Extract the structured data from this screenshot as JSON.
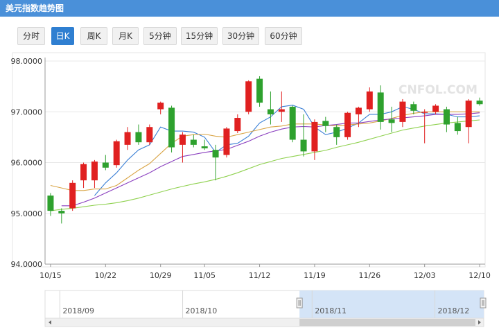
{
  "title": "美元指数趋势图",
  "tabs": [
    {
      "label": "分时",
      "active": false
    },
    {
      "label": "日K",
      "active": true
    },
    {
      "label": "周K",
      "active": false
    },
    {
      "label": "月K",
      "active": false
    },
    {
      "label": "5分钟",
      "active": false
    },
    {
      "label": "15分钟",
      "active": false
    },
    {
      "label": "30分钟",
      "active": false
    },
    {
      "label": "60分钟",
      "active": false
    }
  ],
  "watermark": "CNFOL.COM",
  "colors": {
    "up": "#e02020",
    "down": "#2ea12e",
    "ma5": "#3a7fd5",
    "ma10": "#d9a547",
    "ma20": "#8a3fbf",
    "ma30": "#8fd14f",
    "header": "#4a90d9",
    "active_tab": "#2f7fd1"
  },
  "chart_data": {
    "type": "candlestick",
    "ylim": [
      94.0,
      98.0
    ],
    "yticks": [
      "98.0000",
      "97.0000",
      "96.0000",
      "95.0000",
      "94.0000"
    ],
    "xticks": [
      {
        "label": "10/15",
        "index": 0
      },
      {
        "label": "10/22",
        "index": 5
      },
      {
        "label": "10/29",
        "index": 10
      },
      {
        "label": "11/05",
        "index": 14
      },
      {
        "label": "11/12",
        "index": 19
      },
      {
        "label": "11/19",
        "index": 24
      },
      {
        "label": "11/26",
        "index": 29
      },
      {
        "label": "12/03",
        "index": 34
      },
      {
        "label": "12/10",
        "index": 39
      }
    ],
    "candles": [
      {
        "o": 95.35,
        "h": 95.4,
        "l": 94.95,
        "c": 95.05
      },
      {
        "o": 95.05,
        "h": 95.1,
        "l": 94.8,
        "c": 95.0
      },
      {
        "o": 95.1,
        "h": 95.65,
        "l": 95.05,
        "c": 95.6
      },
      {
        "o": 95.65,
        "h": 96.0,
        "l": 95.5,
        "c": 95.97
      },
      {
        "o": 95.65,
        "h": 96.05,
        "l": 95.5,
        "c": 96.02
      },
      {
        "o": 96.0,
        "h": 96.15,
        "l": 95.85,
        "c": 95.9
      },
      {
        "o": 95.95,
        "h": 96.45,
        "l": 95.9,
        "c": 96.42
      },
      {
        "o": 96.35,
        "h": 96.7,
        "l": 96.25,
        "c": 96.6
      },
      {
        "o": 96.6,
        "h": 96.75,
        "l": 96.35,
        "c": 96.4
      },
      {
        "o": 96.4,
        "h": 96.75,
        "l": 96.35,
        "c": 96.7
      },
      {
        "o": 97.05,
        "h": 97.2,
        "l": 96.95,
        "c": 97.18
      },
      {
        "o": 97.08,
        "h": 97.12,
        "l": 96.2,
        "c": 96.3
      },
      {
        "o": 96.35,
        "h": 96.6,
        "l": 96.0,
        "c": 96.55
      },
      {
        "o": 96.45,
        "h": 96.55,
        "l": 96.3,
        "c": 96.35
      },
      {
        "o": 96.32,
        "h": 96.45,
        "l": 96.25,
        "c": 96.28
      },
      {
        "o": 96.25,
        "h": 96.35,
        "l": 95.65,
        "c": 96.1
      },
      {
        "o": 96.15,
        "h": 96.7,
        "l": 96.1,
        "c": 96.67
      },
      {
        "o": 96.62,
        "h": 96.95,
        "l": 96.58,
        "c": 96.88
      },
      {
        "o": 97.0,
        "h": 97.62,
        "l": 96.95,
        "c": 97.6
      },
      {
        "o": 97.65,
        "h": 97.7,
        "l": 97.1,
        "c": 97.18
      },
      {
        "o": 97.05,
        "h": 97.4,
        "l": 96.75,
        "c": 96.95
      },
      {
        "o": 97.0,
        "h": 97.4,
        "l": 96.8,
        "c": 97.05
      },
      {
        "o": 97.1,
        "h": 97.12,
        "l": 96.4,
        "c": 96.45
      },
      {
        "o": 96.45,
        "h": 96.95,
        "l": 96.12,
        "c": 96.22
      },
      {
        "o": 96.22,
        "h": 96.85,
        "l": 96.05,
        "c": 96.8
      },
      {
        "o": 96.82,
        "h": 96.9,
        "l": 96.6,
        "c": 96.72
      },
      {
        "o": 96.7,
        "h": 96.75,
        "l": 96.35,
        "c": 96.5
      },
      {
        "o": 96.5,
        "h": 97.0,
        "l": 96.45,
        "c": 96.98
      },
      {
        "o": 96.95,
        "h": 97.1,
        "l": 96.7,
        "c": 97.08
      },
      {
        "o": 97.05,
        "h": 97.48,
        "l": 97.0,
        "c": 97.4
      },
      {
        "o": 97.38,
        "h": 97.52,
        "l": 96.65,
        "c": 96.8
      },
      {
        "o": 96.85,
        "h": 97.1,
        "l": 96.6,
        "c": 96.78
      },
      {
        "o": 96.8,
        "h": 97.25,
        "l": 96.7,
        "c": 97.2
      },
      {
        "o": 97.15,
        "h": 97.2,
        "l": 96.95,
        "c": 97.02
      },
      {
        "o": 96.98,
        "h": 97.05,
        "l": 96.38,
        "c": 97.0
      },
      {
        "o": 97.0,
        "h": 97.15,
        "l": 96.95,
        "c": 97.12
      },
      {
        "o": 97.05,
        "h": 97.1,
        "l": 96.6,
        "c": 96.75
      },
      {
        "o": 96.78,
        "h": 96.9,
        "l": 96.55,
        "c": 96.62
      },
      {
        "o": 96.7,
        "h": 97.25,
        "l": 96.38,
        "c": 97.22
      },
      {
        "o": 97.22,
        "h": 97.28,
        "l": 97.12,
        "c": 97.15
      }
    ],
    "ma": [
      {
        "color": "#3a7fd5",
        "values": [
          null,
          null,
          null,
          null,
          95.35,
          95.6,
          95.8,
          96.05,
          96.25,
          96.35,
          96.7,
          96.62,
          96.62,
          96.6,
          96.5,
          96.2,
          96.35,
          96.38,
          96.52,
          96.78,
          96.9,
          97.1,
          97.13,
          97.05,
          96.7,
          96.55,
          96.6,
          96.68,
          96.78,
          96.95,
          96.95,
          97.0,
          97.1,
          97.05,
          96.96,
          96.96,
          96.95,
          96.9,
          96.9,
          96.92
        ]
      },
      {
        "color": "#d9a547",
        "values": [
          95.55,
          95.5,
          95.45,
          95.45,
          95.48,
          95.48,
          95.55,
          95.7,
          95.85,
          95.98,
          96.18,
          96.38,
          96.52,
          96.55,
          96.56,
          96.52,
          96.5,
          96.55,
          96.6,
          96.65,
          96.7,
          96.72,
          96.76,
          96.76,
          96.76,
          96.74,
          96.72,
          96.74,
          96.76,
          96.78,
          96.82,
          96.87,
          96.93,
          96.97,
          97.0,
          97.0,
          97.0,
          97.0,
          97.0,
          97.0
        ]
      },
      {
        "color": "#8a3fbf",
        "values": [
          null,
          95.15,
          95.15,
          95.22,
          95.3,
          95.4,
          95.5,
          95.6,
          95.7,
          95.8,
          95.92,
          96.02,
          96.12,
          96.16,
          96.2,
          96.23,
          96.26,
          96.34,
          96.42,
          96.52,
          96.6,
          96.66,
          96.7,
          96.71,
          96.7,
          96.73,
          96.75,
          96.78,
          96.78,
          96.81,
          96.84,
          96.86,
          96.88,
          96.9,
          96.92,
          96.95,
          96.95,
          96.95,
          96.96,
          96.98
        ]
      },
      {
        "color": "#8fd14f",
        "values": [
          95.05,
          95.08,
          95.1,
          95.13,
          95.16,
          95.18,
          95.21,
          95.25,
          95.3,
          95.36,
          95.42,
          95.48,
          95.53,
          95.58,
          95.62,
          95.67,
          95.73,
          95.8,
          95.88,
          95.96,
          96.02,
          96.08,
          96.12,
          96.16,
          96.2,
          96.24,
          96.3,
          96.35,
          96.4,
          96.46,
          96.52,
          96.58,
          96.64,
          96.68,
          96.72,
          96.75,
          96.78,
          96.8,
          96.82,
          96.84
        ]
      }
    ]
  },
  "navigator": {
    "labels": [
      "2018/09",
      "2018/10",
      "2018/11",
      "2018/12"
    ],
    "selection_start": 0.58,
    "selection_end": 1.0
  }
}
